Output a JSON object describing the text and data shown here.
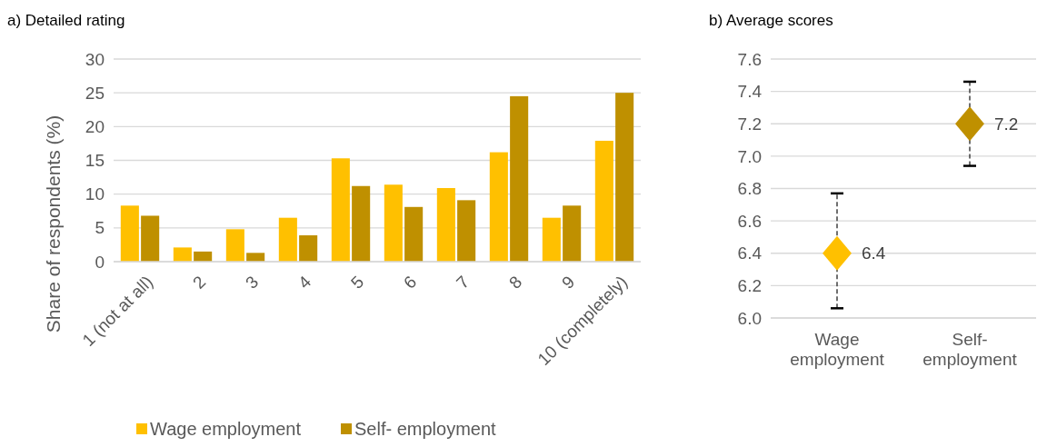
{
  "chart_data": [
    {
      "type": "bar",
      "title": "a) Detailed rating",
      "ylabel": "Share of respondents (%)",
      "categories": [
        "1 (not at all)",
        "2",
        "3",
        "4",
        "5",
        "6",
        "7",
        "8",
        "9",
        "10 (completely)"
      ],
      "series": [
        {
          "name": "Wage employment",
          "color": "#ffc000",
          "values": [
            8.3,
            2.1,
            4.8,
            6.5,
            15.3,
            11.4,
            10.9,
            16.2,
            6.5,
            17.9
          ]
        },
        {
          "name": "Self- employment",
          "color": "#bf9000",
          "values": [
            6.8,
            1.5,
            1.3,
            3.9,
            11.2,
            8.1,
            9.1,
            24.5,
            8.3,
            25.0
          ]
        }
      ],
      "ylim": [
        0,
        30
      ],
      "yticks": [
        0,
        5,
        10,
        15,
        20,
        25,
        30
      ],
      "grid": "y",
      "legend": "bottom"
    },
    {
      "type": "scatter",
      "title": "b) Average scores",
      "categories": [
        "Wage employment",
        "Self- employment"
      ],
      "values": [
        6.4,
        7.2
      ],
      "colors": [
        "#ffc000",
        "#bf9000"
      ],
      "errors": [
        [
          6.06,
          6.77
        ],
        [
          6.94,
          7.46
        ]
      ],
      "ylim": [
        6.0,
        7.6
      ],
      "yticks": [
        {
          "value": 6.0,
          "label": "6.0"
        },
        {
          "value": 6.2,
          "label": "6.2"
        },
        {
          "value": 6.4,
          "label": "6.4"
        },
        {
          "value": 6.6,
          "label": "6.6"
        },
        {
          "value": 6.8,
          "label": "6.8"
        },
        {
          "value": 7.0,
          "label": "7.0"
        },
        {
          "value": 7.2,
          "label": "7.2"
        },
        {
          "value": 7.4,
          "label": "7.4"
        },
        {
          "value": 7.6,
          "label": "7.6"
        }
      ],
      "grid": "y",
      "marker": "diamond",
      "data_labels": true
    }
  ]
}
